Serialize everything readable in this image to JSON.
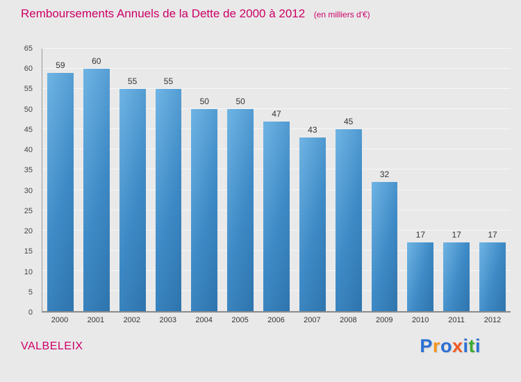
{
  "title": "Remboursements Annuels de la Dette de 2000 à 2012",
  "subtitle": "(en milliers d'€)",
  "colors": {
    "accent_magenta": "#cc0066",
    "bar_blue_light": "#6fb4e4",
    "bar_blue_dark": "#2e74ad",
    "background": "#e9e9e9",
    "axis_gray": "#8a8a8a",
    "text_gray": "#333333"
  },
  "chart_data": {
    "type": "bar",
    "title": "Remboursements Annuels de la Dette de 2000 à 2012",
    "subtitle": "(en milliers d'€)",
    "categories": [
      "2000",
      "2001",
      "2002",
      "2003",
      "2004",
      "2005",
      "2006",
      "2007",
      "2008",
      "2009",
      "2010",
      "2011",
      "2012"
    ],
    "values": [
      59,
      60,
      55,
      55,
      50,
      50,
      47,
      43,
      45,
      32,
      17,
      17,
      17
    ],
    "xlabel": "",
    "ylabel": "",
    "ylim": [
      0,
      65
    ],
    "ytick_step": 5,
    "grid": true,
    "legend": false,
    "value_labels_shown": true
  },
  "footer": {
    "location": "VALBELEIX",
    "logo_letters": [
      {
        "ch": "P",
        "color": "#2a6fd4"
      },
      {
        "ch": "r",
        "color": "#f7941e"
      },
      {
        "ch": "o",
        "color": "#2a6fd4"
      },
      {
        "ch": "x",
        "color": "#f15a24"
      },
      {
        "ch": "i",
        "color": "#2a6fd4"
      },
      {
        "ch": "t",
        "color": "#3aaa35"
      },
      {
        "ch": "i",
        "color": "#2a6fd4"
      }
    ]
  }
}
